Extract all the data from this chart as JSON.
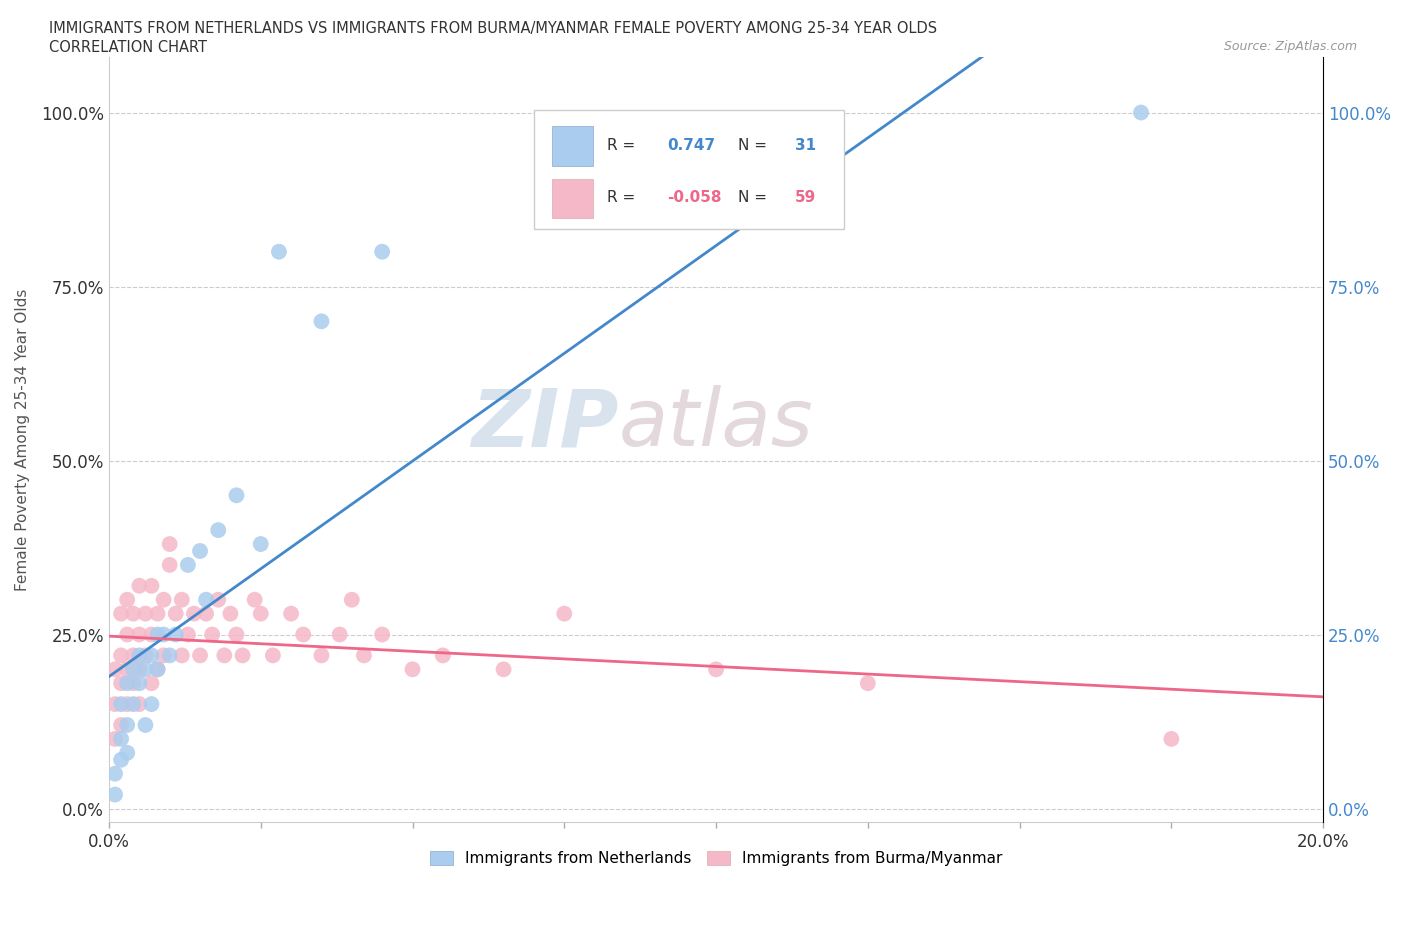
{
  "title_line1": "IMMIGRANTS FROM NETHERLANDS VS IMMIGRANTS FROM BURMA/MYANMAR FEMALE POVERTY AMONG 25-34 YEAR OLDS",
  "title_line2": "CORRELATION CHART",
  "source": "Source: ZipAtlas.com",
  "ylabel": "Female Poverty Among 25-34 Year Olds",
  "legend_label1": "Immigrants from Netherlands",
  "legend_label2": "Immigrants from Burma/Myanmar",
  "R1": 0.747,
  "N1": 31,
  "R2": -0.058,
  "N2": 59,
  "color1": "#aaccee",
  "color2": "#f5b8c8",
  "line_color1": "#4488cc",
  "line_color2": "#ee6688",
  "watermark_zip": "ZIP",
  "watermark_atlas": "atlas",
  "xlim": [
    0.0,
    0.2
  ],
  "ylim": [
    -0.02,
    1.08
  ],
  "xticks": [
    0.0,
    0.025,
    0.05,
    0.075,
    0.1,
    0.125,
    0.15,
    0.175,
    0.2
  ],
  "xtick_labels_show": [
    true,
    false,
    false,
    false,
    false,
    false,
    false,
    false,
    true
  ],
  "xtick_labels": [
    "0.0%",
    "",
    "",
    "",
    "",
    "",
    "",
    "",
    "20.0%"
  ],
  "yticks": [
    0.0,
    0.25,
    0.5,
    0.75,
    1.0
  ],
  "ytick_labels": [
    "0.0%",
    "25.0%",
    "50.0%",
    "75.0%",
    "100.0%"
  ],
  "netherlands_x": [
    0.001,
    0.001,
    0.002,
    0.002,
    0.002,
    0.003,
    0.003,
    0.003,
    0.004,
    0.004,
    0.005,
    0.005,
    0.006,
    0.006,
    0.007,
    0.007,
    0.008,
    0.008,
    0.009,
    0.01,
    0.011,
    0.013,
    0.015,
    0.016,
    0.018,
    0.021,
    0.025,
    0.028,
    0.035,
    0.045,
    0.17
  ],
  "netherlands_y": [
    0.02,
    0.05,
    0.07,
    0.1,
    0.15,
    0.08,
    0.12,
    0.18,
    0.15,
    0.2,
    0.18,
    0.22,
    0.12,
    0.2,
    0.22,
    0.15,
    0.2,
    0.25,
    0.25,
    0.22,
    0.25,
    0.35,
    0.37,
    0.3,
    0.4,
    0.45,
    0.38,
    0.8,
    0.7,
    0.8,
    1.0
  ],
  "burma_x": [
    0.001,
    0.001,
    0.001,
    0.002,
    0.002,
    0.002,
    0.002,
    0.003,
    0.003,
    0.003,
    0.003,
    0.004,
    0.004,
    0.004,
    0.005,
    0.005,
    0.005,
    0.005,
    0.006,
    0.006,
    0.007,
    0.007,
    0.007,
    0.008,
    0.008,
    0.009,
    0.009,
    0.01,
    0.01,
    0.011,
    0.012,
    0.012,
    0.013,
    0.014,
    0.015,
    0.016,
    0.017,
    0.018,
    0.019,
    0.02,
    0.021,
    0.022,
    0.024,
    0.025,
    0.027,
    0.03,
    0.032,
    0.035,
    0.038,
    0.04,
    0.042,
    0.045,
    0.05,
    0.055,
    0.065,
    0.075,
    0.1,
    0.125,
    0.175
  ],
  "burma_y": [
    0.1,
    0.15,
    0.2,
    0.12,
    0.18,
    0.22,
    0.28,
    0.15,
    0.2,
    0.25,
    0.3,
    0.18,
    0.22,
    0.28,
    0.15,
    0.2,
    0.25,
    0.32,
    0.22,
    0.28,
    0.18,
    0.25,
    0.32,
    0.2,
    0.28,
    0.22,
    0.3,
    0.35,
    0.38,
    0.28,
    0.22,
    0.3,
    0.25,
    0.28,
    0.22,
    0.28,
    0.25,
    0.3,
    0.22,
    0.28,
    0.25,
    0.22,
    0.3,
    0.28,
    0.22,
    0.28,
    0.25,
    0.22,
    0.25,
    0.3,
    0.22,
    0.25,
    0.2,
    0.22,
    0.2,
    0.28,
    0.2,
    0.18,
    0.1
  ]
}
